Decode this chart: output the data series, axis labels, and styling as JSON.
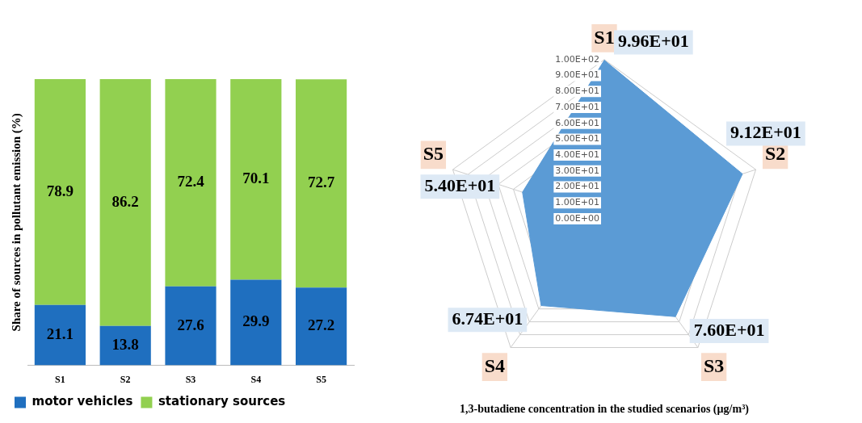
{
  "chart_data": [
    {
      "type": "bar",
      "stacked": true,
      "ylabel": "Share of sources in pollutant emission (%)",
      "categories": [
        "S1",
        "S2",
        "S3",
        "S4",
        "S5"
      ],
      "ylim": [
        0,
        100
      ],
      "tick_labels": "x",
      "grid": false,
      "legend": "bottom",
      "data_labels": true,
      "series": [
        {
          "name": "motor vehicles",
          "color": "#1f6fbf",
          "values": [
            21.1,
            13.8,
            27.6,
            29.9,
            27.2
          ]
        },
        {
          "name": "stationary sources",
          "color": "#92d050",
          "values": [
            78.9,
            86.2,
            72.4,
            70.1,
            72.7
          ]
        }
      ]
    },
    {
      "type": "radar",
      "xlabel": "1,3-butadiene concentration in the studied scenarios (µg/m³)",
      "categories": [
        "S1",
        "S2",
        "S3",
        "S4",
        "S5"
      ],
      "ylim": [
        0,
        100
      ],
      "grid": true,
      "legend": false,
      "yticks": [
        {
          "value": 0,
          "label": "0.00E+00"
        },
        {
          "value": 10,
          "label": "1.00E+01"
        },
        {
          "value": 20,
          "label": "2.00E+01"
        },
        {
          "value": 30,
          "label": "3.00E+01"
        },
        {
          "value": 40,
          "label": "4.00E+01"
        },
        {
          "value": 50,
          "label": "5.00E+01"
        },
        {
          "value": 60,
          "label": "6.00E+01"
        },
        {
          "value": 70,
          "label": "7.00E+01"
        },
        {
          "value": 80,
          "label": "8.00E+01"
        },
        {
          "value": 90,
          "label": "9.00E+01"
        },
        {
          "value": 100,
          "label": "1.00E+02"
        }
      ],
      "series": [
        {
          "color": "#5b9bd5",
          "values": [
            99.6,
            91.2,
            76.0,
            67.4,
            54.0
          ],
          "value_labels": [
            "9.96E+01",
            "9.12E+01",
            "7.60E+01",
            "6.74E+01",
            "5.40E+01"
          ]
        }
      ]
    }
  ]
}
